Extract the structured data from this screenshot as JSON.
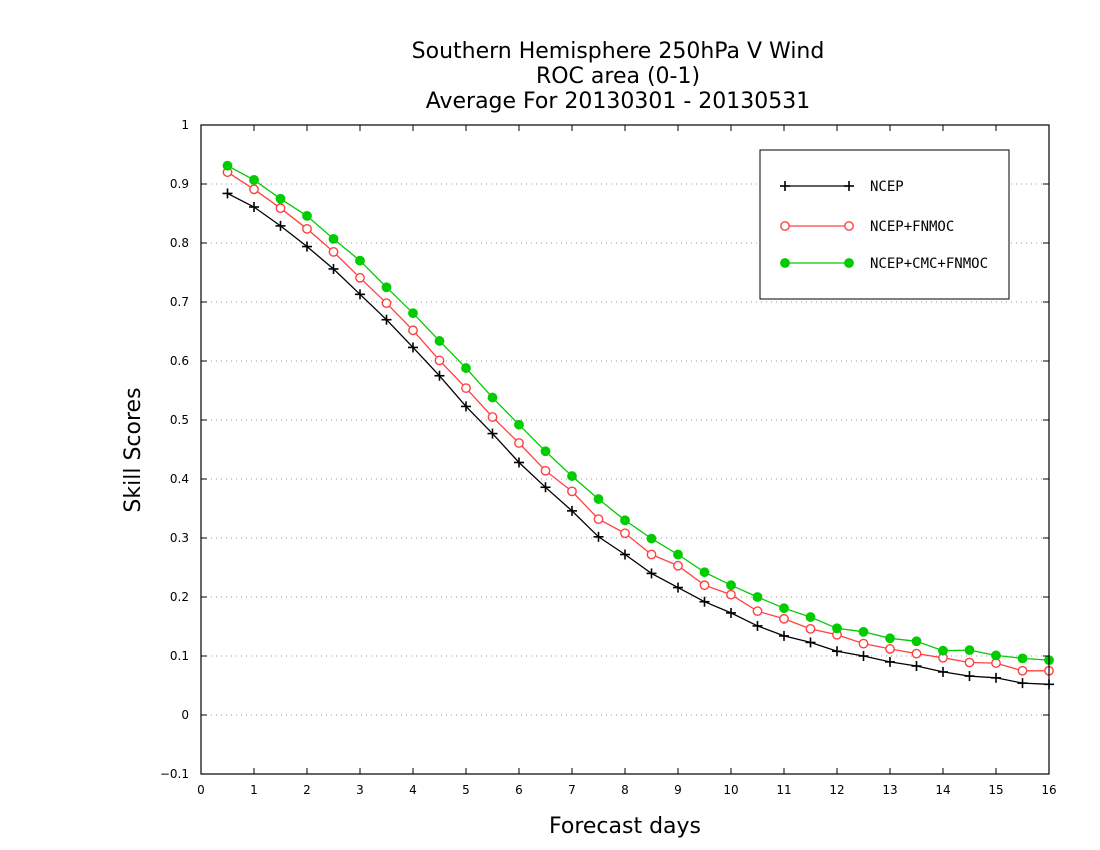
{
  "chart_data": {
    "type": "line",
    "title_lines": [
      "Southern Hemisphere 250hPa V Wind",
      "ROC area (0-1)",
      "Average For 20130301 - 20130531"
    ],
    "xlabel": "Forecast days",
    "ylabel": "Skill Scores",
    "xlim": [
      0,
      16
    ],
    "ylim": [
      -0.1,
      1
    ],
    "xticks": [
      "0",
      "1",
      "2",
      "3",
      "4",
      "5",
      "6",
      "7",
      "8",
      "9",
      "10",
      "11",
      "12",
      "13",
      "14",
      "15",
      "16"
    ],
    "yticks": [
      "−0.1",
      "0",
      "0.1",
      "0.2",
      "0.3",
      "0.4",
      "0.5",
      "0.6",
      "0.7",
      "0.8",
      "0.9",
      "1"
    ],
    "grid": "horizontal dotted",
    "legend_position": "top-right",
    "x": [
      0.5,
      1,
      1.5,
      2,
      2.5,
      3,
      3.5,
      4,
      4.5,
      5,
      5.5,
      6,
      6.5,
      7,
      7.5,
      8,
      8.5,
      9,
      9.5,
      10,
      10.5,
      11,
      11.5,
      12,
      12.5,
      13,
      13.5,
      14,
      14.5,
      15,
      15.5,
      16
    ],
    "series": [
      {
        "name": "NCEP",
        "color": "#000000",
        "marker": "plus",
        "values": [
          0.884,
          0.861,
          0.829,
          0.794,
          0.756,
          0.713,
          0.67,
          0.623,
          0.575,
          0.523,
          0.477,
          0.428,
          0.386,
          0.346,
          0.302,
          0.272,
          0.24,
          0.216,
          0.192,
          0.173,
          0.151,
          0.134,
          0.123,
          0.108,
          0.1,
          0.09,
          0.083,
          0.073,
          0.066,
          0.063,
          0.054,
          0.052
        ]
      },
      {
        "name": "NCEP+FNMOC",
        "color": "#ff4040",
        "marker": "open-circle",
        "values": [
          0.92,
          0.891,
          0.859,
          0.824,
          0.785,
          0.741,
          0.698,
          0.652,
          0.601,
          0.554,
          0.505,
          0.461,
          0.414,
          0.379,
          0.332,
          0.308,
          0.272,
          0.253,
          0.22,
          0.204,
          0.176,
          0.163,
          0.146,
          0.136,
          0.121,
          0.112,
          0.104,
          0.097,
          0.089,
          0.088,
          0.075,
          0.075
        ]
      },
      {
        "name": "NCEP+CMC+FNMOC",
        "color": "#00cc00",
        "marker": "filled-circle",
        "values": [
          0.931,
          0.907,
          0.875,
          0.846,
          0.807,
          0.77,
          0.725,
          0.681,
          0.634,
          0.588,
          0.538,
          0.492,
          0.447,
          0.405,
          0.366,
          0.33,
          0.299,
          0.272,
          0.242,
          0.22,
          0.2,
          0.181,
          0.166,
          0.147,
          0.141,
          0.13,
          0.125,
          0.109,
          0.11,
          0.101,
          0.096,
          0.093
        ]
      }
    ]
  }
}
